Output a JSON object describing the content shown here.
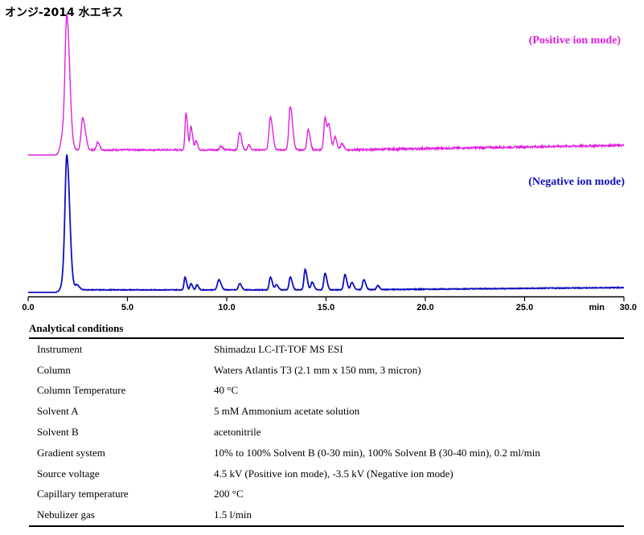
{
  "chart_data": {
    "type": "line",
    "title": "オンジ-2014 水エキス",
    "xlabel": "min",
    "xlim": [
      0,
      30
    ],
    "x_ticks": [
      "0.0",
      "5.0",
      "10.0",
      "15.0",
      "20.0",
      "25.0",
      "30.0"
    ],
    "series": [
      {
        "name": "(Positive ion mode)",
        "color": "#e020e0",
        "baseline": 0.04,
        "noise": 0.012,
        "peaks": [
          {
            "x": 1.95,
            "y": 1.0,
            "w": 0.09
          },
          {
            "x": 1.75,
            "y": 0.12,
            "w": 0.1
          },
          {
            "x": 2.75,
            "y": 0.25,
            "w": 0.08
          },
          {
            "x": 3.5,
            "y": 0.06,
            "w": 0.06
          },
          {
            "x": 7.95,
            "y": 0.29,
            "w": 0.05
          },
          {
            "x": 8.2,
            "y": 0.18,
            "w": 0.05
          },
          {
            "x": 8.45,
            "y": 0.07,
            "w": 0.05
          },
          {
            "x": 9.7,
            "y": 0.03,
            "w": 0.06
          },
          {
            "x": 10.65,
            "y": 0.14,
            "w": 0.06
          },
          {
            "x": 11.1,
            "y": 0.04,
            "w": 0.05
          },
          {
            "x": 12.2,
            "y": 0.26,
            "w": 0.07
          },
          {
            "x": 13.2,
            "y": 0.34,
            "w": 0.07
          },
          {
            "x": 14.1,
            "y": 0.16,
            "w": 0.06
          },
          {
            "x": 14.95,
            "y": 0.25,
            "w": 0.06
          },
          {
            "x": 15.15,
            "y": 0.17,
            "w": 0.06
          },
          {
            "x": 15.45,
            "y": 0.1,
            "w": 0.06
          },
          {
            "x": 15.8,
            "y": 0.05,
            "w": 0.06
          }
        ]
      },
      {
        "name": "(Negative ion mode)",
        "color": "#1010c0",
        "baseline": 0.02,
        "noise": 0.005,
        "peaks": [
          {
            "x": 1.95,
            "y": 1.0,
            "w": 0.09
          },
          {
            "x": 1.8,
            "y": 0.1,
            "w": 0.1
          },
          {
            "x": 2.45,
            "y": 0.04,
            "w": 0.08
          },
          {
            "x": 7.9,
            "y": 0.1,
            "w": 0.05
          },
          {
            "x": 8.2,
            "y": 0.05,
            "w": 0.05
          },
          {
            "x": 8.5,
            "y": 0.04,
            "w": 0.05
          },
          {
            "x": 9.6,
            "y": 0.08,
            "w": 0.07
          },
          {
            "x": 10.65,
            "y": 0.05,
            "w": 0.06
          },
          {
            "x": 12.2,
            "y": 0.1,
            "w": 0.06
          },
          {
            "x": 12.5,
            "y": 0.04,
            "w": 0.06
          },
          {
            "x": 13.2,
            "y": 0.1,
            "w": 0.06
          },
          {
            "x": 13.95,
            "y": 0.16,
            "w": 0.06
          },
          {
            "x": 14.3,
            "y": 0.06,
            "w": 0.06
          },
          {
            "x": 14.95,
            "y": 0.13,
            "w": 0.06
          },
          {
            "x": 15.95,
            "y": 0.12,
            "w": 0.06
          },
          {
            "x": 16.3,
            "y": 0.06,
            "w": 0.06
          },
          {
            "x": 16.9,
            "y": 0.08,
            "w": 0.06
          },
          {
            "x": 17.6,
            "y": 0.03,
            "w": 0.06
          }
        ]
      }
    ],
    "grid": false,
    "legend": "labels above each trace, right"
  },
  "conditions": {
    "title": "Analytical conditions",
    "rows": [
      {
        "label": "Instrument",
        "value": "Shimadzu LC-IT-TOF MS ESI"
      },
      {
        "label": "Column",
        "value": "Waters Atlantis T3 (2.1 mm x 150 mm, 3 micron)"
      },
      {
        "label": "Column Temperature",
        "value": "40 °C"
      },
      {
        "label": "Solvent A",
        "value": "5 mM Ammonium acetate solution"
      },
      {
        "label": "Solvent B",
        "value": "acetonitrile"
      },
      {
        "label": "Gradient system",
        "value": "10% to 100% Solvent B (0-30 min), 100% Solvent B (30-40 min), 0.2 ml/min"
      },
      {
        "label": "Source voltage",
        "value": "4.5 kV (Positive ion mode), -3.5 kV (Negative ion mode)"
      },
      {
        "label": "Capillary temperature",
        "value": "200 °C"
      },
      {
        "label": "Nebulizer gas",
        "value": "1.5 l/min"
      }
    ]
  }
}
